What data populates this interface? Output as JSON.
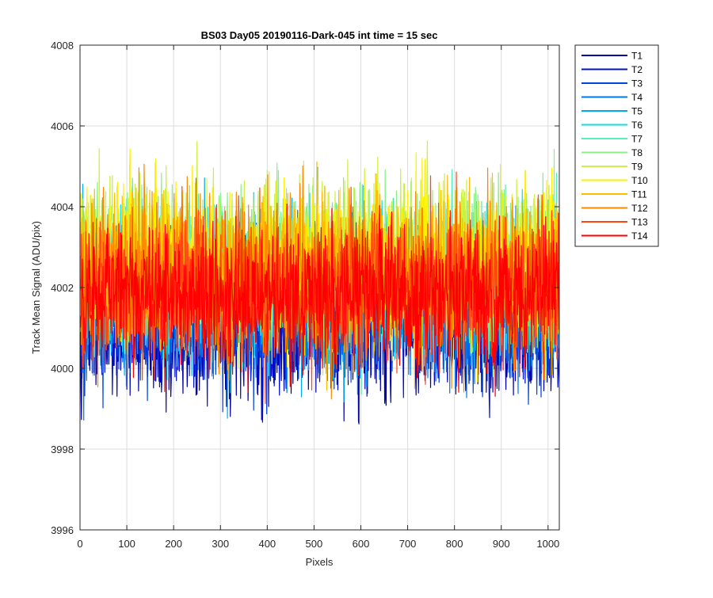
{
  "chart_data": {
    "type": "line",
    "title": "BS03 Day05 20190116-Dark-045 int time = 15 sec",
    "xlabel": "Pixels",
    "ylabel": "Track Mean Signal (ADU/pix)",
    "xlim": [
      0,
      1024
    ],
    "ylim": [
      3996,
      4008
    ],
    "x_ticks": [
      0,
      100,
      200,
      300,
      400,
      500,
      600,
      700,
      800,
      900,
      1000
    ],
    "y_ticks": [
      3996,
      3998,
      4000,
      4002,
      4004,
      4006,
      4008
    ],
    "grid": true,
    "legend_position": "outside-top-right",
    "x_range_per_series": [
      1,
      1024
    ],
    "series": [
      {
        "name": "T1",
        "color": "#0000AA",
        "mean": 4001.0,
        "noise": 0.85
      },
      {
        "name": "T2",
        "color": "#0011CC",
        "mean": 4001.2,
        "noise": 0.85
      },
      {
        "name": "T3",
        "color": "#0044DD",
        "mean": 4001.4,
        "noise": 0.85
      },
      {
        "name": "T4",
        "color": "#0077EE",
        "mean": 4001.6,
        "noise": 0.85
      },
      {
        "name": "T5",
        "color": "#00AAEE",
        "mean": 4001.9,
        "noise": 0.9
      },
      {
        "name": "T6",
        "color": "#11DDEE",
        "mean": 4002.2,
        "noise": 0.9
      },
      {
        "name": "T7",
        "color": "#55EEBB",
        "mean": 4002.4,
        "noise": 0.9
      },
      {
        "name": "T8",
        "color": "#88F088",
        "mean": 4002.6,
        "noise": 0.9
      },
      {
        "name": "T9",
        "color": "#CCF044",
        "mean": 4002.7,
        "noise": 0.9
      },
      {
        "name": "T10",
        "color": "#FFF000",
        "mean": 4002.6,
        "noise": 0.95
      },
      {
        "name": "T11",
        "color": "#FFBB00",
        "mean": 4002.4,
        "noise": 0.95
      },
      {
        "name": "T12",
        "color": "#FF8800",
        "mean": 4002.2,
        "noise": 0.95
      },
      {
        "name": "T13",
        "color": "#FF4411",
        "mean": 4001.9,
        "noise": 0.9
      },
      {
        "name": "T14",
        "color": "#FF0000",
        "mean": 4001.8,
        "noise": 0.85
      }
    ]
  }
}
